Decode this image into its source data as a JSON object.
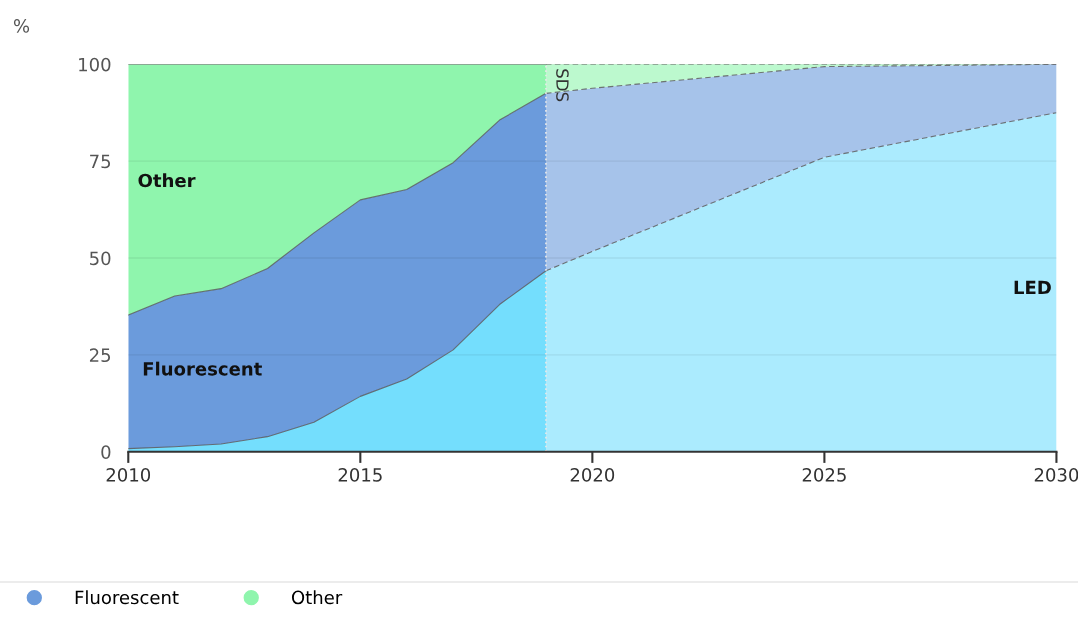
{
  "chart_data": {
    "type": "area",
    "stacked": true,
    "ylabel": "%",
    "x": [
      2010,
      2011,
      2012,
      2013,
      2014,
      2015,
      2016,
      2017,
      2018,
      2019,
      2020,
      2025,
      2030
    ],
    "series": [
      {
        "color": "#74defd",
        "values": [
          0.8,
          1.3,
          2,
          3.9,
          7.6,
          14.3,
          18.8,
          26.3,
          38,
          46.7,
          51.7,
          76,
          87.5
        ]
      },
      {
        "name": "Fluorescent",
        "color": "#6b9bdc",
        "values": [
          34.5,
          38.9,
          40.1,
          43.4,
          48.9,
          50.7,
          48.9,
          48.3,
          47.6,
          45.8,
          42.1,
          23.4,
          12.5
        ]
      },
      {
        "name": "Other",
        "color": "#8ff5ad",
        "values": [
          64.7,
          59.8,
          57.9,
          52.7,
          43.5,
          35,
          32.3,
          25.4,
          14.4,
          7.5,
          6.2,
          0.6,
          0
        ]
      }
    ],
    "xlim": [
      2010,
      2030
    ],
    "xticks": [
      2010,
      2015,
      2020,
      2025,
      2030
    ],
    "ylim": [
      0,
      100
    ],
    "yticks": [
      0,
      25,
      50,
      75,
      100
    ],
    "grid": "y",
    "legend": "bottom left",
    "ref_lines": [
      {
        "axis": "x",
        "value": 2019,
        "label": "SDS",
        "color": "#e8e8e8",
        "line_style": "dotted"
      }
    ],
    "bands": [
      {
        "axis": "x",
        "from": 2019,
        "to": 2030,
        "color": "#ffffff"
      }
    ],
    "annotations": [
      "Other",
      "Fluorescent",
      "LED"
    ]
  }
}
